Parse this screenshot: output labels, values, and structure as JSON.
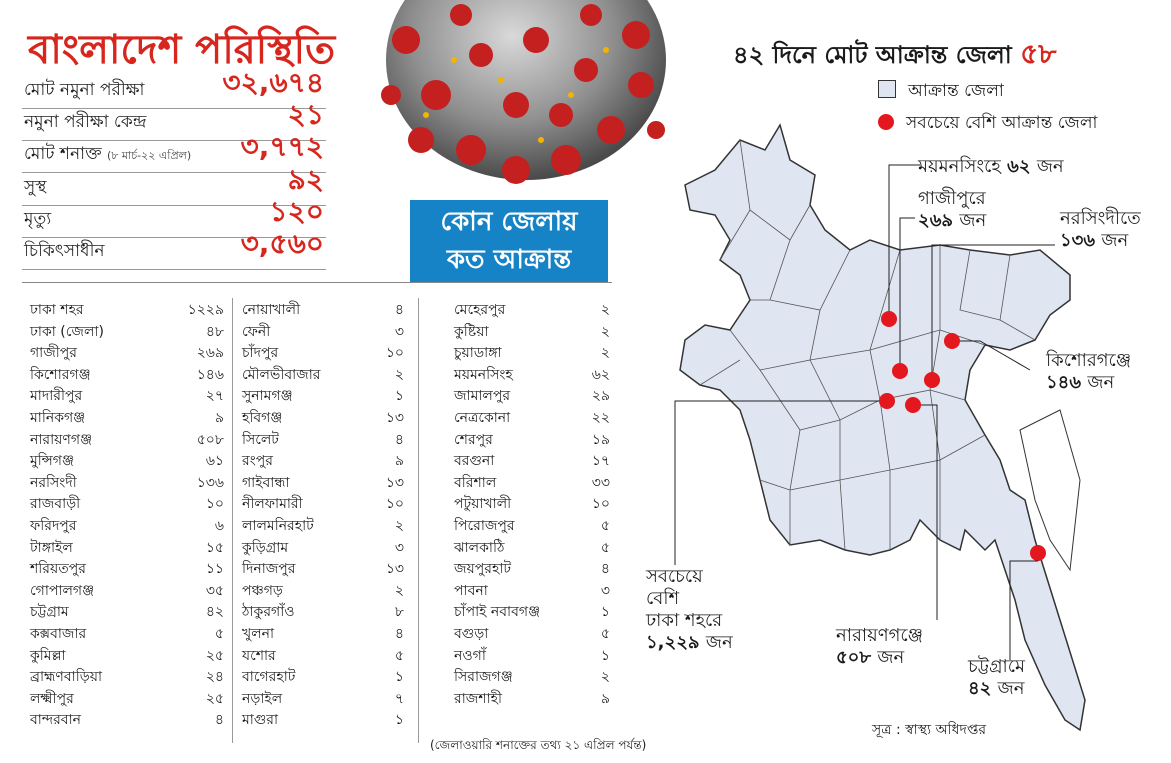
{
  "title": "বাংলাদেশ পরিস্থিতি",
  "summary": [
    {
      "label": "মোট নমুনা পরীক্ষা",
      "note": "",
      "value": "৩২,৬৭৪"
    },
    {
      "label": "নমুনা পরীক্ষা কেন্দ্র",
      "note": "",
      "value": "২১"
    },
    {
      "label": "মোট শনাক্ত",
      "note": "(৮ মার্চ-২২ এপ্রিল)",
      "value": "৩,৭৭২"
    },
    {
      "label": "সুস্থ",
      "note": "",
      "value": "৯২"
    },
    {
      "label": "মৃত্যু",
      "note": "",
      "value": "১২০"
    },
    {
      "label": "চিকিৎসাধীন",
      "note": "",
      "value": "৩,৫৬০"
    }
  ],
  "box_line1": "কোন জেলায়",
  "box_line2": "কত আক্রান্ত",
  "columns": [
    [
      [
        "ঢাকা শহর",
        "১২২৯"
      ],
      [
        "ঢাকা (জেলা)",
        "৪৮"
      ],
      [
        "গাজীপুর",
        "২৬৯"
      ],
      [
        "কিশোরগঞ্জ",
        "১৪৬"
      ],
      [
        "মাদারীপুর",
        "২৭"
      ],
      [
        "মানিকগঞ্জ",
        "৯"
      ],
      [
        "নারায়ণগঞ্জ",
        "৫০৮"
      ],
      [
        "মুন্সিগঞ্জ",
        "৬১"
      ],
      [
        "নরসিংদী",
        "১৩৬"
      ],
      [
        "রাজবাড়ী",
        "১০"
      ],
      [
        "ফরিদপুর",
        "৬"
      ],
      [
        "টাঙ্গাইল",
        "১৫"
      ],
      [
        "শরিয়তপুর",
        "১১"
      ],
      [
        "গোপালগঞ্জ",
        "৩৫"
      ],
      [
        "চট্টগ্রাম",
        "৪২"
      ],
      [
        "কক্সবাজার",
        "৫"
      ],
      [
        "কুমিল্লা",
        "২৫"
      ],
      [
        "ব্রাহ্মণবাড়িয়া",
        "২৪"
      ],
      [
        "লক্ষ্মীপুর",
        "২৫"
      ],
      [
        "বান্দরবান",
        "৪"
      ]
    ],
    [
      [
        "নোয়াখালী",
        "৪"
      ],
      [
        "ফেনী",
        "৩"
      ],
      [
        "চাঁদপুর",
        "১০"
      ],
      [
        "মৌলভীবাজার",
        "২"
      ],
      [
        "সুনামগঞ্জ",
        "১"
      ],
      [
        "হবিগঞ্জ",
        "১৩"
      ],
      [
        "সিলেট",
        "৪"
      ],
      [
        "রংপুর",
        "৯"
      ],
      [
        "গাইবান্ধা",
        "১৩"
      ],
      [
        "নীলফামারী",
        "১০"
      ],
      [
        "লালমনিরহাট",
        "২"
      ],
      [
        "কুড়িগ্রাম",
        "৩"
      ],
      [
        "দিনাজপুর",
        "১৩"
      ],
      [
        "পঞ্চগড়",
        "২"
      ],
      [
        "ঠাকুরগাঁও",
        "৮"
      ],
      [
        "খুলনা",
        "৪"
      ],
      [
        "যশোর",
        "৫"
      ],
      [
        "বাগেরহাট",
        "১"
      ],
      [
        "নড়াইল",
        "৭"
      ],
      [
        "মাগুরা",
        "১"
      ]
    ],
    [
      [
        "মেহেরপুর",
        "২"
      ],
      [
        "কুষ্টিয়া",
        "২"
      ],
      [
        "চুয়াডাঙ্গা",
        "২"
      ],
      [
        "ময়মনসিংহ",
        "৬২"
      ],
      [
        "জামালপুর",
        "২৯"
      ],
      [
        "নেত্রকোনা",
        "২২"
      ],
      [
        "শেরপুর",
        "১৯"
      ],
      [
        "বরগুনা",
        "১৭"
      ],
      [
        "বরিশাল",
        "৩৩"
      ],
      [
        "পটুয়াখালী",
        "১০"
      ],
      [
        "পিরোজপুর",
        "৫"
      ],
      [
        "ঝালকাঠি",
        "৫"
      ],
      [
        "জয়পুরহাট",
        "৪"
      ],
      [
        "পাবনা",
        "৩"
      ],
      [
        "চাঁপাই নবাবগঞ্জ",
        "১"
      ],
      [
        "বগুড়া",
        "৫"
      ],
      [
        "নওগাঁ",
        "১"
      ],
      [
        "সিরাজগঞ্জ",
        "২"
      ],
      [
        "রাজশাহী",
        "৯"
      ]
    ]
  ],
  "footnote": "(জেলাওয়ারি শনাক্তের তথ্য ২১ এপ্রিল পর্যন্ত)",
  "map_title": "৪২ দিনে মোট আক্রান্ত জেলা",
  "map_title_count": "৫৮",
  "legend_affected": "আক্রান্ত জেলা",
  "legend_most": "সবচেয়ে বেশি আক্রান্ত জেলা",
  "annotations": {
    "mymensingh_place": "ময়মনসিংহে",
    "mymensingh_count": "৬২",
    "mymensingh_unit": "জন",
    "gazipur_place": "গাজীপুরে",
    "gazipur_count": "২৬৯",
    "gazipur_unit": "জন",
    "narsingdi_place": "নরসিংদীতে",
    "narsingdi_count": "১৩৬",
    "narsingdi_unit": "জন",
    "kishoreganj_place": "কিশোরগঞ্জে",
    "kishoreganj_count": "১৪৬",
    "kishoreganj_unit": "জন",
    "dhaka_line1": "সবচেয়ে",
    "dhaka_line2": "বেশি",
    "dhaka_line3": "ঢাকা শহরে",
    "dhaka_count": "১,২২৯",
    "dhaka_unit": "জন",
    "narayanganj_place": "নারায়ণগঞ্জে",
    "narayanganj_count": "৫০৮",
    "narayanganj_unit": "জন",
    "chattogram_place": "চট্টগ্রামে",
    "chattogram_count": "৪২",
    "chattogram_unit": "জন"
  },
  "source": "সূত্র : স্বাস্থ্য অধিদপ্তর",
  "colors": {
    "accent_red": "#d7261e",
    "box_blue": "#1583c6",
    "map_fill": "#dfe6f2",
    "dot_red": "#e3171d"
  }
}
